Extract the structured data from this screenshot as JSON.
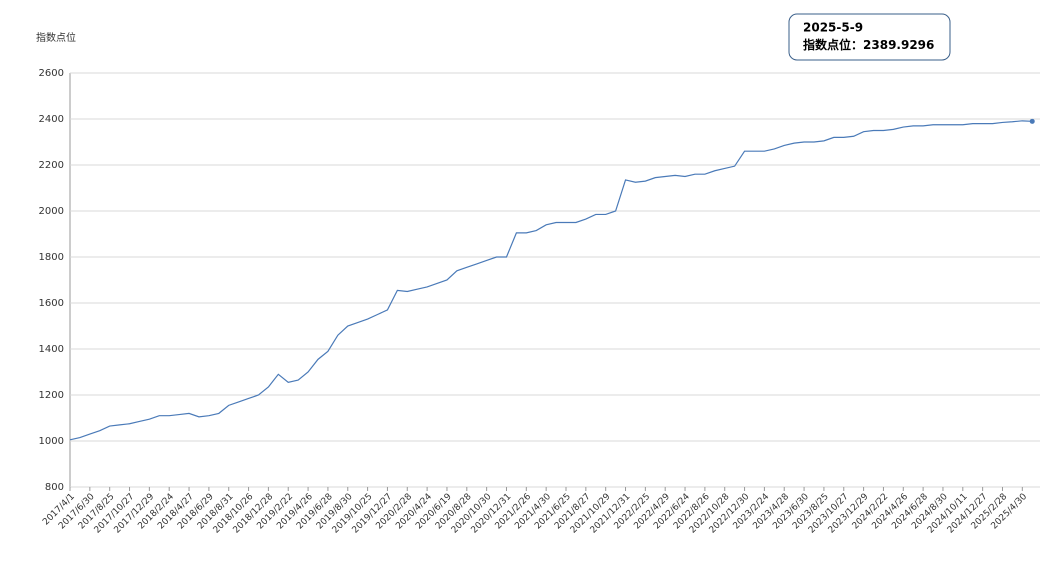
{
  "chart_data": {
    "type": "line",
    "y_label": "指数点位",
    "tooltip": {
      "date": "2025-5-9",
      "label": "指数点位："
    },
    "categories": [
      "2017/4/1",
      null,
      "2017/6/30",
      null,
      "2017/8/25",
      null,
      "2017/10/27",
      null,
      "2017/12/29",
      null,
      "2018/2/24",
      null,
      "2018/4/27",
      null,
      "2018/6/29",
      null,
      "2018/8/31",
      null,
      "2018/10/26",
      null,
      "2018/12/28",
      null,
      "2019/2/22",
      null,
      "2019/4/26",
      null,
      "2019/6/28",
      null,
      "2019/8/30",
      null,
      "2019/10/25",
      null,
      "2019/12/27",
      null,
      "2020/2/28",
      null,
      "2020/4/24",
      null,
      "2020/6/19",
      null,
      "2020/8/28",
      null,
      "2020/10/30",
      null,
      "2020/12/31",
      null,
      "2021/2/26",
      null,
      "2021/4/30",
      null,
      "2021/6/25",
      null,
      "2021/8/27",
      null,
      "2021/10/29",
      null,
      "2021/12/31",
      null,
      "2022/2/25",
      null,
      "2022/4/29",
      null,
      "2022/6/24",
      null,
      "2022/8/26",
      null,
      "2022/10/28",
      null,
      "2022/12/30",
      null,
      "2023/2/24",
      null,
      "2023/4/28",
      null,
      "2023/6/30",
      null,
      "2023/8/25",
      null,
      "2023/10/27",
      null,
      "2023/12/29",
      null,
      "2024/2/22",
      null,
      "2024/4/26",
      null,
      "2024/6/28",
      null,
      "2024/8/30",
      null,
      "2024/10/11",
      null,
      "2024/12/27",
      null,
      "2025/2/28",
      null,
      "2025/4/30",
      null
    ],
    "values": [
      1005,
      1015,
      1030,
      1045,
      1065,
      1070,
      1075,
      1085,
      1095,
      1110,
      1110,
      1115,
      1120,
      1105,
      1110,
      1120,
      1155,
      1170,
      1185,
      1200,
      1235,
      1290,
      1255,
      1265,
      1300,
      1355,
      1390,
      1460,
      1500,
      1515,
      1530,
      1550,
      1570,
      1655,
      1650,
      1660,
      1670,
      1685,
      1700,
      1740,
      1755,
      1770,
      1785,
      1800,
      1800,
      1905,
      1905,
      1915,
      1940,
      1950,
      1950,
      1950,
      1965,
      1985,
      1985,
      2000,
      2135,
      2125,
      2130,
      2145,
      2150,
      2155,
      2150,
      2160,
      2160,
      2175,
      2185,
      2195,
      2260,
      2260,
      2260,
      2270,
      2285,
      2295,
      2300,
      2300,
      2305,
      2320,
      2320,
      2325,
      2345,
      2350,
      2350,
      2355,
      2365,
      2370,
      2370,
      2375,
      2375,
      2375,
      2375,
      2380,
      2380,
      2380,
      2385,
      2388,
      2392,
      2389.9296
    ],
    "color": "#4a7ab8",
    "ylim": [
      800,
      2600
    ],
    "yticks": [
      800,
      1000,
      1200,
      1400,
      1600,
      1800,
      2000,
      2200,
      2400,
      2600
    ],
    "grid": true
  }
}
